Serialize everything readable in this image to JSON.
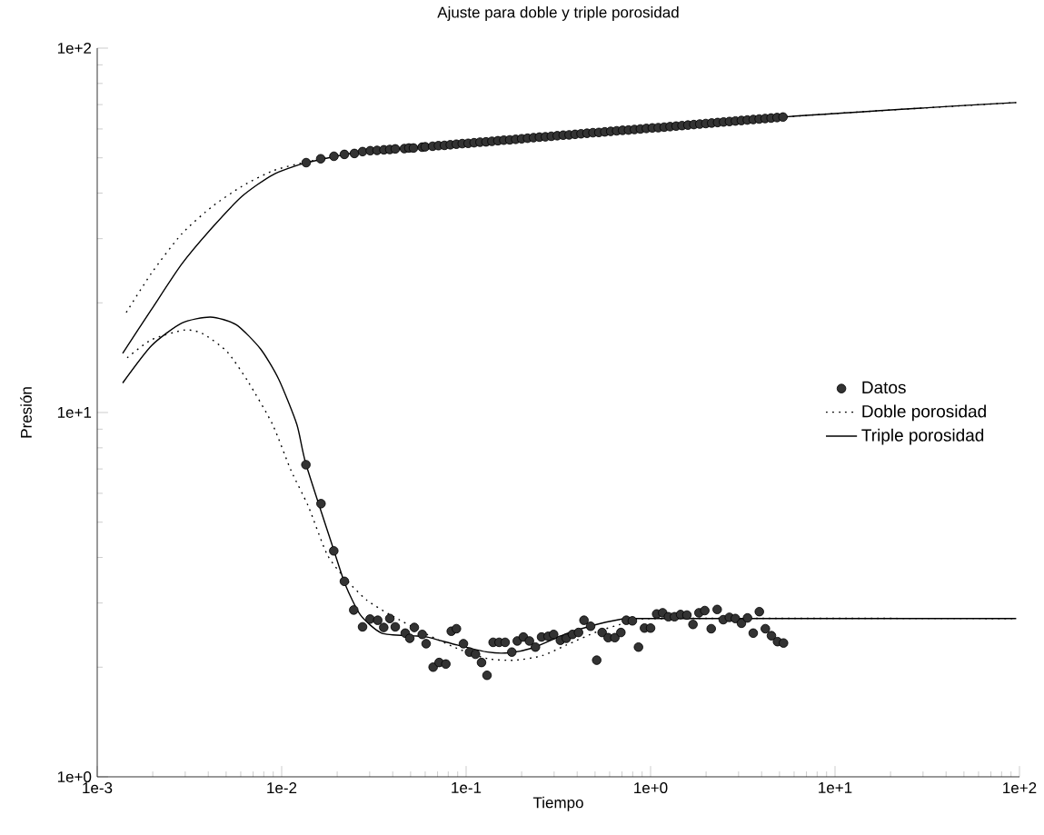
{
  "chart_data": {
    "type": "line",
    "title": "Ajuste para doble y triple porosidad",
    "xlabel": "Tiempo",
    "ylabel": "Presión",
    "log": "xy",
    "legend": "right",
    "xlim": [
      0.001,
      100
    ],
    "ylim": [
      1,
      100
    ],
    "xticks": [
      {
        "value": 0.001,
        "label": "1e-3"
      },
      {
        "value": 0.01,
        "label": "1e-2"
      },
      {
        "value": 0.1,
        "label": "1e-1"
      },
      {
        "value": 1,
        "label": "1e+0"
      },
      {
        "value": 10,
        "label": "1e+1"
      },
      {
        "value": 100,
        "label": "1e+2"
      }
    ],
    "yticks": [
      {
        "value": 1,
        "label": "1e+0"
      },
      {
        "value": 10,
        "label": "1e+1"
      },
      {
        "value": 100,
        "label": "1e+2"
      }
    ],
    "series": [
      {
        "name": "Datos",
        "type": "scatter",
        "marker": "circle",
        "color": "#333333",
        "x": [
          0.01358,
          0.01628,
          0.0192,
          0.02188,
          0.02479,
          0.02745,
          0.03022,
          0.0329,
          0.03583,
          0.03857,
          0.04129,
          0.04624,
          0.04894,
          0.0518,
          0.05777,
          0.06,
          0.0658,
          0.0708,
          0.0763,
          0.0821,
          0.0885,
          0.0953,
          0.1026,
          0.1105,
          0.119,
          0.1282,
          0.138,
          0.1487,
          0.1601,
          0.1724,
          0.1857,
          0.2,
          0.2154,
          0.232,
          0.2498,
          0.269,
          0.2897,
          0.312,
          0.336,
          0.3619,
          0.3898,
          0.4198,
          0.4521,
          0.4869,
          0.5244,
          0.5647,
          0.6081,
          0.655,
          0.7054,
          0.7597,
          0.818,
          0.881,
          0.949,
          1.022,
          1.101,
          1.185,
          1.276,
          1.375,
          1.481,
          1.594,
          1.717,
          1.849,
          1.992,
          2.145,
          2.31,
          2.488,
          2.679,
          2.885,
          3.107,
          3.346,
          3.604,
          3.882,
          4.18,
          4.502,
          4.849,
          5.222,
          0.01353,
          0.01634,
          0.01916,
          0.02188,
          0.02459,
          0.02745,
          0.03015,
          0.03317,
          0.03575,
          0.03857,
          0.04129,
          0.04677,
          0.04949,
          0.05239,
          0.05783,
          0.0607,
          0.06625,
          0.07139,
          0.07765,
          0.0831,
          0.0886,
          0.0967,
          0.1043,
          0.1124,
          0.1212,
          0.1298,
          0.1401,
          0.151,
          0.1628,
          0.1769,
          0.1894,
          0.2043,
          0.2204,
          0.2376,
          0.2564,
          0.2785,
          0.2981,
          0.3243,
          0.3494,
          0.3772,
          0.4069,
          0.4355,
          0.473,
          0.5105,
          0.5463,
          0.5888,
          0.6404,
          0.6902,
          0.7389,
          0.797,
          0.86,
          0.927,
          1.0,
          1.079,
          1.163,
          1.25,
          1.348,
          1.454,
          1.574,
          1.698,
          1.83,
          1.968,
          2.132,
          2.297,
          2.478,
          2.674,
          2.882,
          3.11,
          3.355,
          3.603,
          3.888,
          4.191,
          4.522,
          4.878,
          5.257
        ],
        "values": [
          48.5,
          49.7,
          50.5,
          51.1,
          51.4,
          52.0,
          52.3,
          52.4,
          52.6,
          52.7,
          52.9,
          53.0,
          53.2,
          53.2,
          53.5,
          53.6,
          53.8,
          54.0,
          54.1,
          54.3,
          54.5,
          54.7,
          54.8,
          55.0,
          55.2,
          55.3,
          55.5,
          55.7,
          55.9,
          56.0,
          56.2,
          56.4,
          56.6,
          56.8,
          57.0,
          57.1,
          57.3,
          57.5,
          57.7,
          57.8,
          58.0,
          58.2,
          58.4,
          58.6,
          58.7,
          58.9,
          59.1,
          59.3,
          59.5,
          59.6,
          59.8,
          60.0,
          60.2,
          60.4,
          60.5,
          60.7,
          60.9,
          61.1,
          61.3,
          61.5,
          61.7,
          61.9,
          62.1,
          62.3,
          62.5,
          62.7,
          62.9,
          63.1,
          63.3,
          63.5,
          63.7,
          63.9,
          64.1,
          64.3,
          64.5,
          64.7,
          7.19,
          5.62,
          4.17,
          3.44,
          2.87,
          2.58,
          2.71,
          2.69,
          2.57,
          2.72,
          2.58,
          2.48,
          2.4,
          2.57,
          2.46,
          2.32,
          2.0,
          2.06,
          2.04,
          2.51,
          2.55,
          2.32,
          2.2,
          2.17,
          2.06,
          1.9,
          2.34,
          2.34,
          2.34,
          2.2,
          2.36,
          2.42,
          2.36,
          2.27,
          2.42,
          2.43,
          2.46,
          2.37,
          2.4,
          2.46,
          2.49,
          2.69,
          2.59,
          2.09,
          2.49,
          2.41,
          2.41,
          2.49,
          2.69,
          2.68,
          2.27,
          2.56,
          2.56,
          2.8,
          2.82,
          2.75,
          2.75,
          2.79,
          2.78,
          2.62,
          2.82,
          2.86,
          2.55,
          2.88,
          2.7,
          2.74,
          2.72,
          2.64,
          2.73,
          2.48,
          2.84,
          2.55,
          2.44,
          2.35,
          2.33
        ]
      },
      {
        "name": "Doble porosidad",
        "line_style": "dotted",
        "color": "#000000",
        "x": [
          0.001437,
          0.001968,
          0.002871,
          0.00419,
          0.006118,
          0.008927,
          0.01302,
          0.02745,
          0.0658,
          5.24,
          96
        ],
        "values": [
          18.81,
          24.12,
          30.92,
          36.72,
          41.82,
          46.03,
          48.46,
          52.0,
          53.8,
          64.7,
          70.9
        ]
      },
      {
        "name": "Triple porosidad",
        "line_style": "solid",
        "color": "#000000",
        "x": [
          0.001374,
          0.001968,
          0.002871,
          0.00419,
          0.006118,
          0.008927,
          0.01353,
          0.02745,
          0.0658,
          5.24,
          96
        ],
        "values": [
          14.54,
          19.17,
          25.54,
          32.12,
          39.26,
          44.88,
          48.46,
          52.0,
          53.8,
          64.7,
          70.9
        ]
      },
      {
        "line_style": "dotted",
        "color": "#000000",
        "x": [
          0.001454,
          0.001968,
          0.002981,
          0.003741,
          0.005063,
          0.006596,
          0.008927,
          0.0112,
          0.01394,
          0.01763,
          0.02213,
          0.02882,
          0.039,
          0.0614,
          0.0896,
          0.1308,
          0.1839,
          0.2584,
          0.3494,
          0.5105,
          0.7447,
          1.086,
          96
        ],
        "values": [
          14.13,
          15.84,
          16.84,
          16.45,
          14.67,
          12.12,
          9.27,
          6.96,
          5.53,
          4.08,
          3.5,
          3.06,
          2.78,
          2.46,
          2.25,
          2.11,
          2.09,
          2.15,
          2.3,
          2.5,
          2.65,
          2.72,
          2.72
        ]
      },
      {
        "line_style": "solid",
        "color": "#000000",
        "x": [
          0.001374,
          0.001968,
          0.002871,
          0.004115,
          0.005671,
          0.007678,
          0.00963,
          0.01209,
          0.01353,
          0.01903,
          0.02213,
          0.02674,
          0.03483,
          0.0508,
          0.0614,
          0.0896,
          0.1308,
          0.1704,
          0.2307,
          0.3494,
          0.5105,
          0.7447,
          1.086,
          96
        ],
        "values": [
          12.05,
          15.25,
          17.59,
          18.28,
          17.42,
          14.95,
          12.35,
          9.27,
          7.23,
          4.24,
          3.37,
          2.78,
          2.48,
          2.44,
          2.42,
          2.3,
          2.2,
          2.19,
          2.26,
          2.47,
          2.62,
          2.72,
          2.72,
          2.72
        ]
      }
    ]
  }
}
